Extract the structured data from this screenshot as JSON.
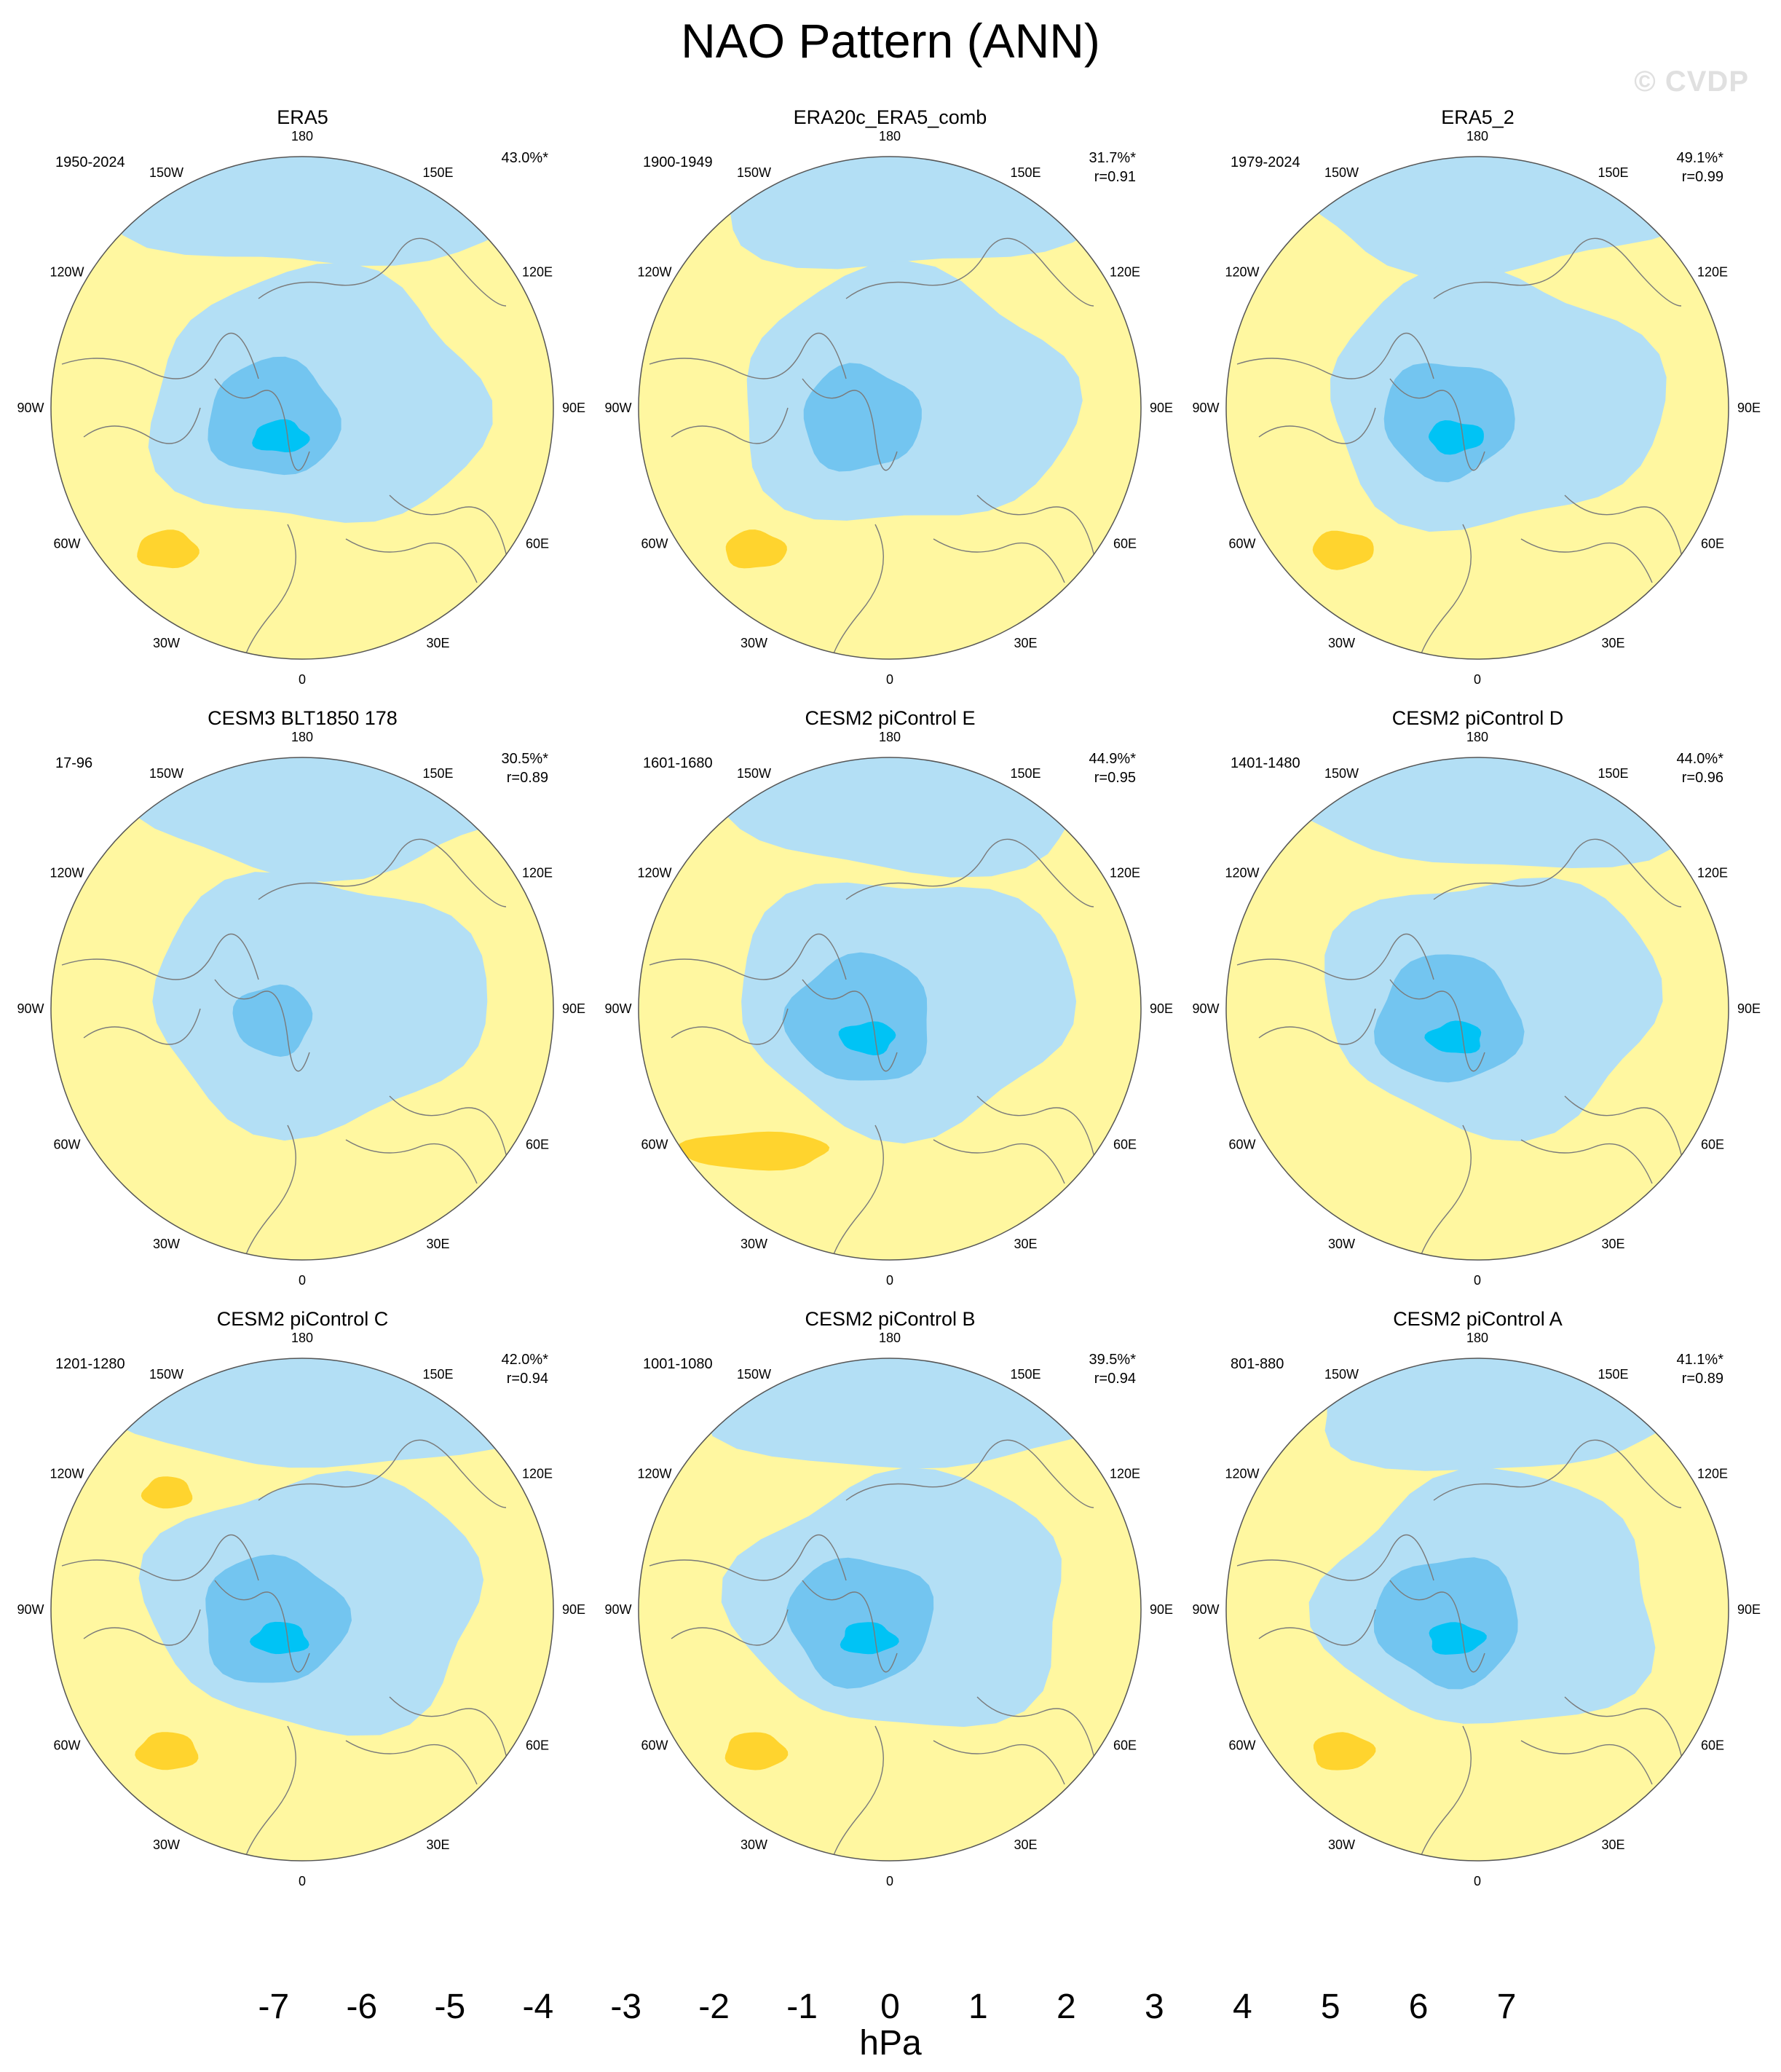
{
  "title": "NAO Pattern (ANN)",
  "watermark": "© CVDP",
  "colors": {
    "pos1": "#fff7a0",
    "pos2": "#ffd42e",
    "neg1": "#b3dff5",
    "neg2": "#73c5f0",
    "neg3": "#00c3f5",
    "coast": "#7a7a7a"
  },
  "lon_labels": [
    "180",
    "150E",
    "120E",
    "90E",
    "60E",
    "30E",
    "0",
    "30W",
    "60W",
    "90W",
    "120W",
    "150W"
  ],
  "panels": [
    {
      "title": "ERA5",
      "period": "1950-2024",
      "pct": "43.0%*",
      "r": "",
      "pos2": [
        1
      ],
      "neg2_size": 1.0,
      "neg3": true
    },
    {
      "title": "ERA20c_ERA5_comb",
      "period": "1900-1949",
      "pct": "31.7%*",
      "r": "r=0.91",
      "pos2": [
        1
      ],
      "neg2_size": 0.9,
      "neg3": false
    },
    {
      "title": "ERA5_2",
      "period": "1979-2024",
      "pct": "49.1%*",
      "r": "r=0.99",
      "pos2": [
        1
      ],
      "neg2_size": 1.0,
      "neg3": true
    },
    {
      "title": "CESM3 BLT1850 178",
      "period": "17-96",
      "pct": "30.5%*",
      "r": "r=0.89",
      "pos2": [],
      "neg2_size": 0.6,
      "neg3": false
    },
    {
      "title": "CESM2 piControl E",
      "period": "1601-1680",
      "pct": "44.9%*",
      "r": "r=0.95",
      "pos2": [
        1
      ],
      "neg2_size": 1.1,
      "neg3": true
    },
    {
      "title": "CESM2 piControl D",
      "period": "1401-1480",
      "pct": "44.0%*",
      "r": "r=0.96",
      "pos2": [],
      "neg2_size": 1.1,
      "neg3": true
    },
    {
      "title": "CESM2 piControl C",
      "period": "1201-1280",
      "pct": "42.0%*",
      "r": "r=0.94",
      "pos2": [
        1,
        2
      ],
      "neg2_size": 1.1,
      "neg3": true
    },
    {
      "title": "CESM2 piControl B",
      "period": "1001-1080",
      "pct": "39.5%*",
      "r": "r=0.94",
      "pos2": [
        1
      ],
      "neg2_size": 1.1,
      "neg3": true
    },
    {
      "title": "CESM2 piControl A",
      "period": "801-880",
      "pct": "41.1%*",
      "r": "r=0.89",
      "pos2": [
        1
      ],
      "neg2_size": 1.1,
      "neg3": true
    }
  ],
  "colorbar": {
    "colors": [
      "#8a2ef0",
      "#1e0aff",
      "#2a46ee",
      "#3277ee",
      "#1e96ff",
      "#00c3f5",
      "#73c5f0",
      "#b3dff5",
      "#fff7a0",
      "#ffd42e",
      "#ffb400",
      "#ff7800",
      "#ff3200",
      "#e60000",
      "#c81e1e",
      "#ffb4b4"
    ],
    "labels": [
      "-7",
      "-6",
      "-5",
      "-4",
      "-3",
      "-2",
      "-1",
      "0",
      "1",
      "2",
      "3",
      "4",
      "5",
      "6",
      "7"
    ],
    "units": "hPa"
  }
}
